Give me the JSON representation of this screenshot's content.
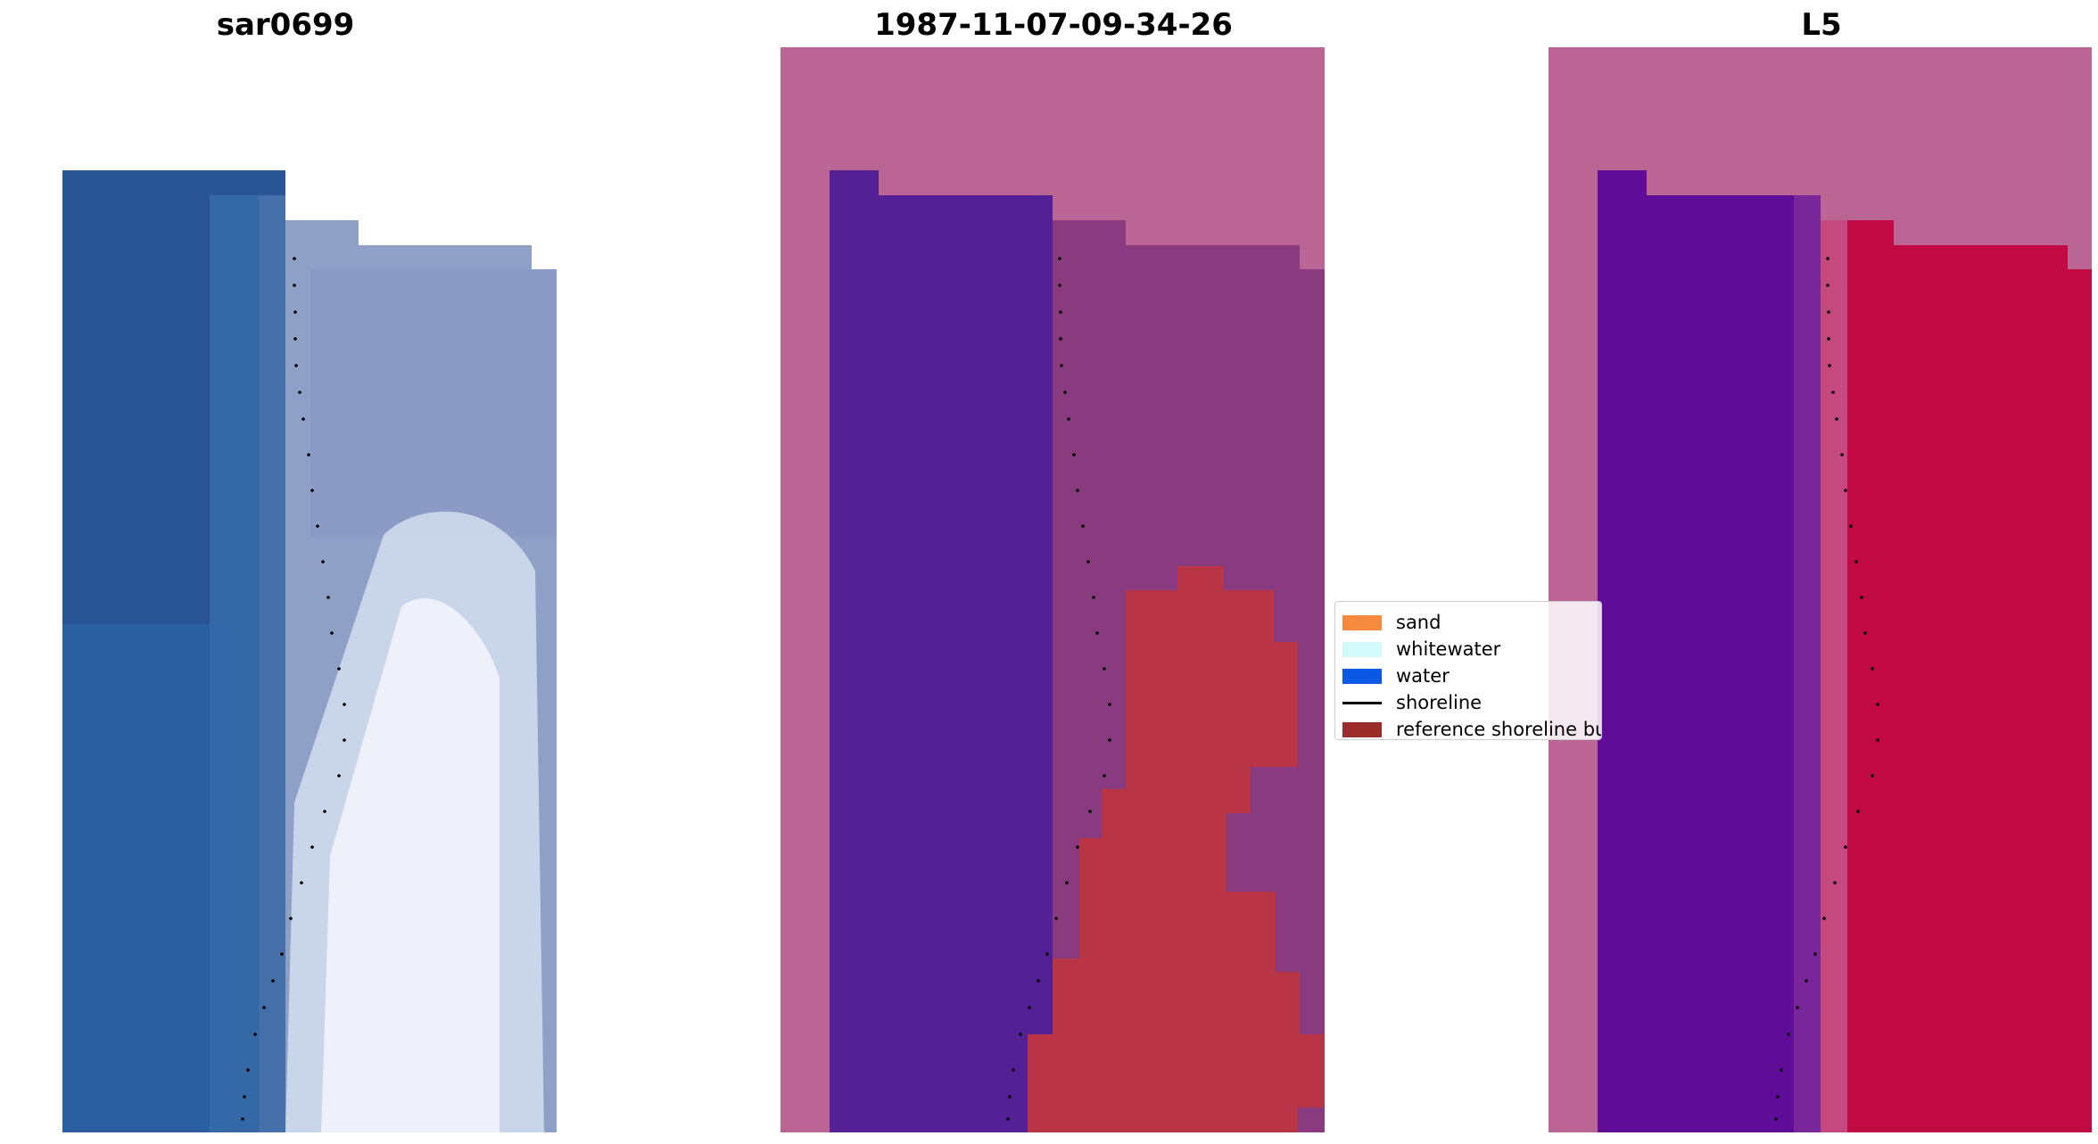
{
  "panels": [
    {
      "title": "sar0699"
    },
    {
      "title": "1987-11-07-09-34-26"
    },
    {
      "title": "L5"
    }
  ],
  "legend": {
    "items": [
      {
        "label": "sand",
        "kind": "patch",
        "color": "#f58a3e"
      },
      {
        "label": "whitewater",
        "kind": "patch",
        "color": "#d2fafa"
      },
      {
        "label": "water",
        "kind": "patch",
        "color": "#0a5ae6"
      },
      {
        "label": "shoreline",
        "kind": "line",
        "color": "#000000"
      },
      {
        "label": "reference shoreline buffer",
        "kind": "patch",
        "color": "#9b2d2d"
      }
    ]
  }
}
